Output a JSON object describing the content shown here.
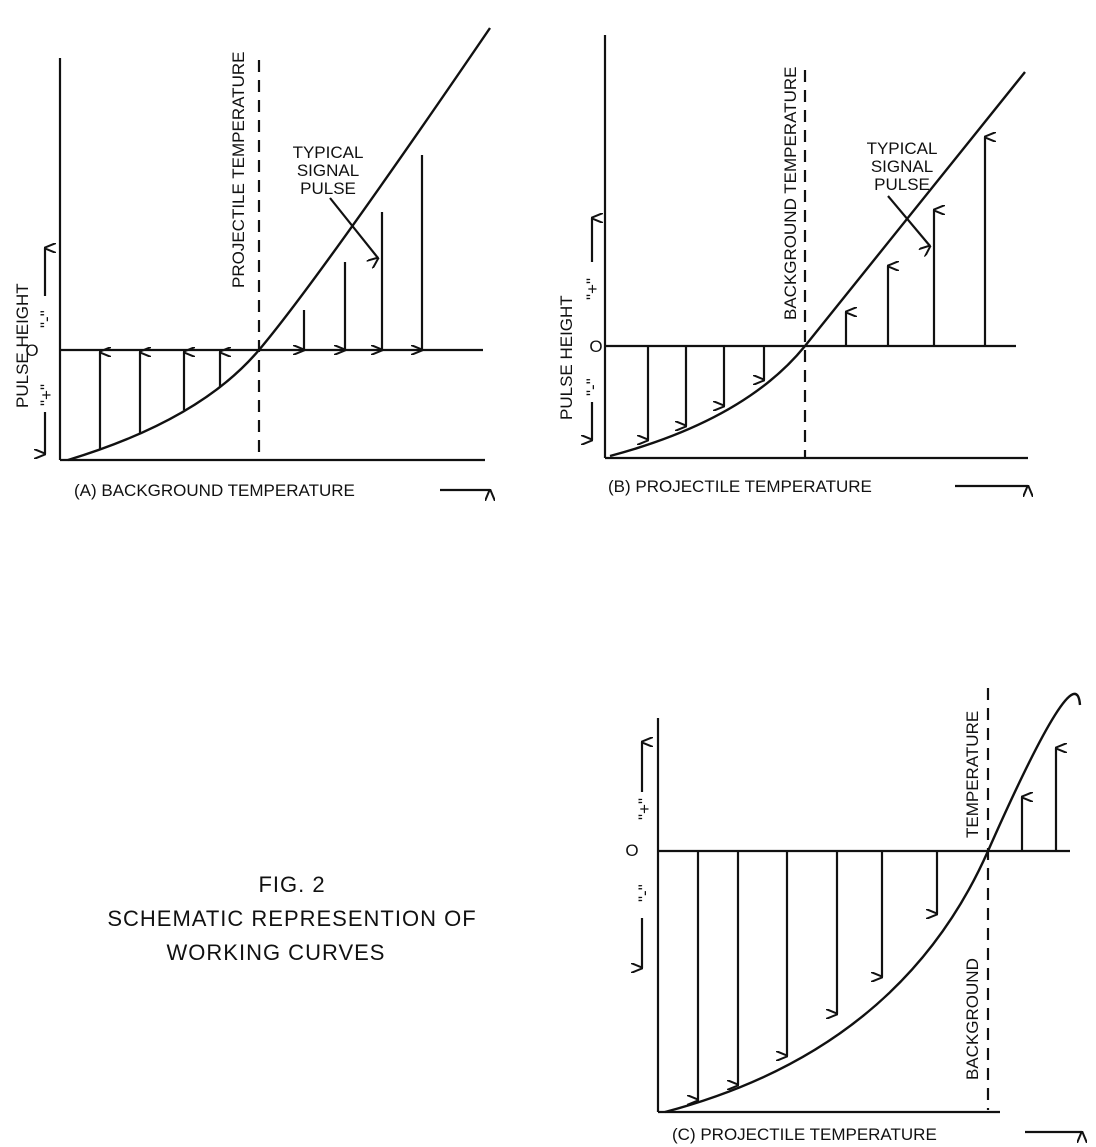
{
  "figure": {
    "caption_line1": "FIG. 2",
    "caption_line2": "SCHEMATIC REPRESENTION OF",
    "caption_line3": "WORKING CURVES"
  },
  "panel_a": {
    "xlabel": "(A)  BACKGROUND TEMPERATURE",
    "ylabel": "PULSE HEIGHT",
    "minus_label": "\"-\"",
    "plus_label": "\"+\"",
    "zero_label": "O",
    "vline_label": "PROJECTILE TEMPERATURE",
    "annotation": [
      "TYPICAL",
      "SIGNAL",
      "PULSE"
    ]
  },
  "panel_b": {
    "xlabel": "(B)  PROJECTILE TEMPERATURE",
    "ylabel": "PULSE HEIGHT",
    "plus_label": "\"+\"",
    "minus_label": "\"-\"",
    "zero_label": "O",
    "vline_label": "BACKGROUND TEMPERATURE",
    "annotation": [
      "TYPICAL",
      "SIGNAL",
      "PULSE"
    ]
  },
  "panel_c": {
    "xlabel": "(C)  PROJECTILE TEMPERATURE",
    "plus_label": "\"+\"",
    "minus_label": "\"-\"",
    "zero_label": "O",
    "vline_label_top": "TEMPERATURE",
    "vline_label_bottom": "BACKGROUND"
  }
}
